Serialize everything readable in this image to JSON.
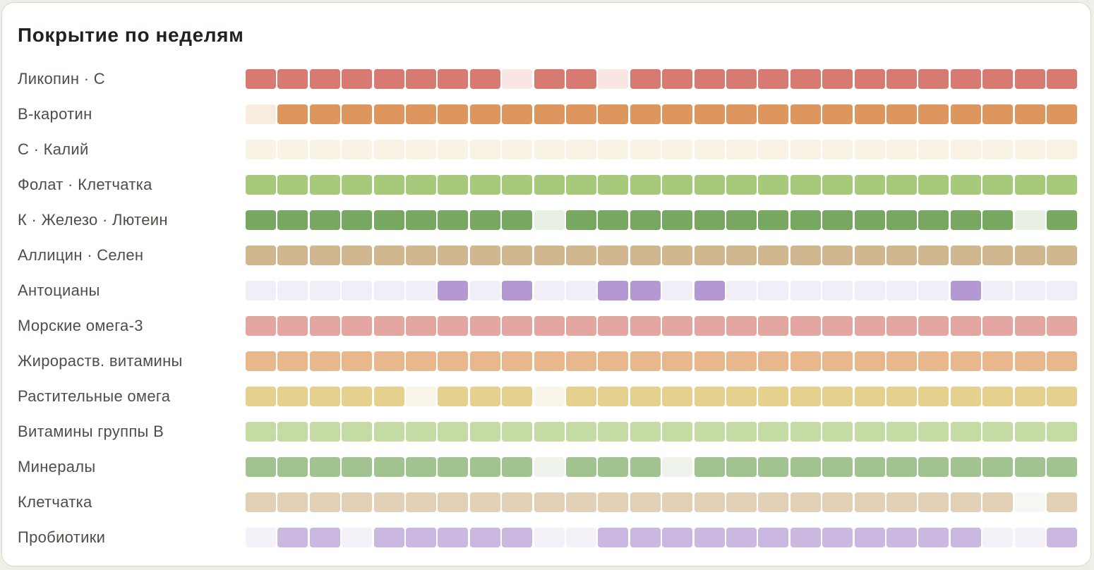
{
  "title": "Покрытие по неделям",
  "chart_data": {
    "type": "heatmap",
    "title": "Покрытие по неделям",
    "columns": 26,
    "value_legend": {
      "1": "covered",
      "0": "not covered"
    },
    "rows": [
      {
        "label": "Ликопин · С",
        "full_color": "#d77a72",
        "empty_color": "#f7e6e2",
        "values": [
          1,
          1,
          1,
          1,
          1,
          1,
          1,
          1,
          0,
          1,
          1,
          0,
          1,
          1,
          1,
          1,
          1,
          1,
          1,
          1,
          1,
          1,
          1,
          1,
          1,
          1
        ]
      },
      {
        "label": "В-каротин",
        "full_color": "#dd975e",
        "empty_color": "#f8ebe0",
        "values": [
          0,
          1,
          1,
          1,
          1,
          1,
          1,
          1,
          1,
          1,
          1,
          1,
          1,
          1,
          1,
          1,
          1,
          1,
          1,
          1,
          1,
          1,
          1,
          1,
          1,
          1
        ]
      },
      {
        "label": "С · Калий",
        "full_color": "#e6c47f",
        "empty_color": "#f8f3e4",
        "values": [
          0,
          0,
          0,
          0,
          0,
          0,
          0,
          0,
          0,
          0,
          0,
          0,
          0,
          0,
          0,
          0,
          0,
          0,
          0,
          0,
          0,
          0,
          0,
          0,
          0,
          0
        ]
      },
      {
        "label": "Фолат · Клетчатка",
        "full_color": "#a7c97b",
        "empty_color": "#eef4e6",
        "values": [
          1,
          1,
          1,
          1,
          1,
          1,
          1,
          1,
          1,
          1,
          1,
          1,
          1,
          1,
          1,
          1,
          1,
          1,
          1,
          1,
          1,
          1,
          1,
          1,
          1,
          1
        ]
      },
      {
        "label": "К · Железо · Лютеин",
        "full_color": "#78a761",
        "empty_color": "#e8f0e3",
        "values": [
          1,
          1,
          1,
          1,
          1,
          1,
          1,
          1,
          1,
          0,
          1,
          1,
          1,
          1,
          1,
          1,
          1,
          1,
          1,
          1,
          1,
          1,
          1,
          1,
          0,
          1
        ]
      },
      {
        "label": "Аллицин · Селен",
        "full_color": "#d0b78f",
        "empty_color": "#f3ede3",
        "values": [
          1,
          1,
          1,
          1,
          1,
          1,
          1,
          1,
          1,
          1,
          1,
          1,
          1,
          1,
          1,
          1,
          1,
          1,
          1,
          1,
          1,
          1,
          1,
          1,
          1,
          1
        ]
      },
      {
        "label": "Антоцианы",
        "full_color": "#b398d4",
        "empty_color": "#f1eef7",
        "values": [
          0,
          0,
          0,
          0,
          0,
          0,
          1,
          0,
          1,
          0,
          0,
          1,
          1,
          0,
          1,
          0,
          0,
          0,
          0,
          0,
          0,
          0,
          1,
          0,
          0,
          0
        ]
      },
      {
        "label": "Морские омега-3",
        "full_color": "#e3a6a0",
        "empty_color": "#f9ecea",
        "values": [
          1,
          1,
          1,
          1,
          1,
          1,
          1,
          1,
          1,
          1,
          1,
          1,
          1,
          1,
          1,
          1,
          1,
          1,
          1,
          1,
          1,
          1,
          1,
          1,
          1,
          1
        ]
      },
      {
        "label": "Жирораств. витамины",
        "full_color": "#e8b78c",
        "empty_color": "#f9efe6",
        "values": [
          1,
          1,
          1,
          1,
          1,
          1,
          1,
          1,
          1,
          1,
          1,
          1,
          1,
          1,
          1,
          1,
          1,
          1,
          1,
          1,
          1,
          1,
          1,
          1,
          1,
          1
        ]
      },
      {
        "label": "Растительные омега",
        "full_color": "#e5d18d",
        "empty_color": "#f9f6e9",
        "values": [
          1,
          1,
          1,
          1,
          1,
          0,
          1,
          1,
          1,
          0,
          1,
          1,
          1,
          1,
          1,
          1,
          1,
          1,
          1,
          1,
          1,
          1,
          1,
          1,
          1,
          1
        ]
      },
      {
        "label": "Витамины группы B",
        "full_color": "#c4dca4",
        "empty_color": "#f1f6ea",
        "values": [
          1,
          1,
          1,
          1,
          1,
          1,
          1,
          1,
          1,
          1,
          1,
          1,
          1,
          1,
          1,
          1,
          1,
          1,
          1,
          1,
          1,
          1,
          1,
          1,
          1,
          1
        ]
      },
      {
        "label": "Минералы",
        "full_color": "#a1c390",
        "empty_color": "#eef4ec",
        "values": [
          1,
          1,
          1,
          1,
          1,
          1,
          1,
          1,
          1,
          0,
          1,
          1,
          1,
          0,
          1,
          1,
          1,
          1,
          1,
          1,
          1,
          1,
          1,
          1,
          1,
          1
        ]
      },
      {
        "label": "Клетчатка",
        "full_color": "#e1d0b5",
        "empty_color": "#f6f6f2",
        "values": [
          1,
          1,
          1,
          1,
          1,
          1,
          1,
          1,
          1,
          1,
          1,
          1,
          1,
          1,
          1,
          1,
          1,
          1,
          1,
          1,
          1,
          1,
          1,
          1,
          0,
          1
        ]
      },
      {
        "label": "Пробиотики",
        "full_color": "#cbb8e1",
        "empty_color": "#f4f2f8",
        "values": [
          0,
          1,
          1,
          0,
          1,
          1,
          1,
          1,
          1,
          0,
          0,
          1,
          1,
          1,
          1,
          1,
          1,
          1,
          1,
          1,
          1,
          1,
          1,
          0,
          0,
          1
        ]
      }
    ]
  }
}
